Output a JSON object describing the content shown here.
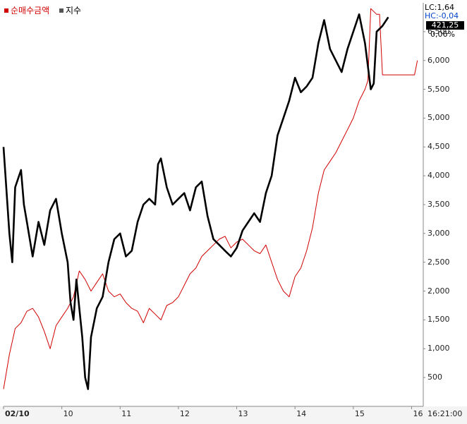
{
  "legend": {
    "amount_label": "순매수금액",
    "index_label": "지수"
  },
  "readouts": {
    "lc": "LC:1,64",
    "hc": "HC:-0,04",
    "current_value": "421,25",
    "change_pct": "0,06%",
    "time": "16:21:00"
  },
  "colors": {
    "amount_series": "#d10000",
    "index_series": "#000000",
    "background": "#ffffff",
    "axis_line": "#888888"
  },
  "chart_data": {
    "type": "line",
    "x_labels": [
      "02/10",
      "10",
      "11",
      "12",
      "13",
      "14",
      "15",
      "16"
    ],
    "y_ticks": [
      "500",
      "1,000",
      "1,500",
      "2,000",
      "2,500",
      "3,000",
      "3,500",
      "4,000",
      "4,500",
      "5,000",
      "5,500",
      "6,000",
      "6,500"
    ],
    "ylim": [
      0,
      7000
    ],
    "grid": false,
    "legend_position": "top-left",
    "series": [
      {
        "name": "순매수금액",
        "points": [
          [
            0.0,
            300
          ],
          [
            0.1,
            900
          ],
          [
            0.2,
            1350
          ],
          [
            0.3,
            1450
          ],
          [
            0.4,
            1650
          ],
          [
            0.5,
            1700
          ],
          [
            0.6,
            1550
          ],
          [
            0.7,
            1300
          ],
          [
            0.8,
            1000
          ],
          [
            0.9,
            1400
          ],
          [
            1.0,
            1550
          ],
          [
            1.1,
            1700
          ],
          [
            1.2,
            1900
          ],
          [
            1.3,
            2350
          ],
          [
            1.4,
            2200
          ],
          [
            1.5,
            2000
          ],
          [
            1.6,
            2150
          ],
          [
            1.7,
            2300
          ],
          [
            1.8,
            2000
          ],
          [
            1.9,
            1900
          ],
          [
            2.0,
            1950
          ],
          [
            2.1,
            1800
          ],
          [
            2.2,
            1700
          ],
          [
            2.3,
            1650
          ],
          [
            2.4,
            1450
          ],
          [
            2.5,
            1700
          ],
          [
            2.6,
            1600
          ],
          [
            2.7,
            1500
          ],
          [
            2.8,
            1750
          ],
          [
            2.9,
            1800
          ],
          [
            3.0,
            1900
          ],
          [
            3.1,
            2100
          ],
          [
            3.2,
            2300
          ],
          [
            3.3,
            2400
          ],
          [
            3.4,
            2600
          ],
          [
            3.5,
            2700
          ],
          [
            3.6,
            2800
          ],
          [
            3.7,
            2900
          ],
          [
            3.8,
            2950
          ],
          [
            3.9,
            2750
          ],
          [
            4.0,
            2850
          ],
          [
            4.1,
            2900
          ],
          [
            4.2,
            2800
          ],
          [
            4.3,
            2700
          ],
          [
            4.4,
            2650
          ],
          [
            4.5,
            2800
          ],
          [
            4.6,
            2500
          ],
          [
            4.7,
            2200
          ],
          [
            4.8,
            2000
          ],
          [
            4.9,
            1900
          ],
          [
            5.0,
            2250
          ],
          [
            5.1,
            2400
          ],
          [
            5.2,
            2700
          ],
          [
            5.3,
            3100
          ],
          [
            5.4,
            3700
          ],
          [
            5.5,
            4100
          ],
          [
            5.6,
            4250
          ],
          [
            5.7,
            4400
          ],
          [
            5.8,
            4600
          ],
          [
            5.9,
            4800
          ],
          [
            6.0,
            5000
          ],
          [
            6.1,
            5300
          ],
          [
            6.2,
            5500
          ],
          [
            6.25,
            5650
          ],
          [
            6.3,
            6900
          ],
          [
            6.4,
            6800
          ],
          [
            6.45,
            6800
          ],
          [
            6.5,
            5750
          ],
          [
            6.7,
            5750
          ],
          [
            6.9,
            5750
          ],
          [
            7.05,
            5750
          ],
          [
            7.1,
            6000
          ]
        ]
      },
      {
        "name": "지수",
        "points": [
          [
            0.0,
            4500
          ],
          [
            0.1,
            3000
          ],
          [
            0.15,
            2500
          ],
          [
            0.2,
            3800
          ],
          [
            0.3,
            4100
          ],
          [
            0.35,
            3500
          ],
          [
            0.4,
            3200
          ],
          [
            0.5,
            2600
          ],
          [
            0.6,
            3200
          ],
          [
            0.7,
            2800
          ],
          [
            0.8,
            3400
          ],
          [
            0.9,
            3600
          ],
          [
            1.0,
            3000
          ],
          [
            1.1,
            2500
          ],
          [
            1.15,
            1800
          ],
          [
            1.2,
            1500
          ],
          [
            1.25,
            2200
          ],
          [
            1.35,
            1200
          ],
          [
            1.4,
            500
          ],
          [
            1.45,
            300
          ],
          [
            1.5,
            1200
          ],
          [
            1.6,
            1700
          ],
          [
            1.7,
            1900
          ],
          [
            1.8,
            2500
          ],
          [
            1.9,
            2900
          ],
          [
            2.0,
            3000
          ],
          [
            2.1,
            2600
          ],
          [
            2.2,
            2700
          ],
          [
            2.3,
            3200
          ],
          [
            2.4,
            3500
          ],
          [
            2.5,
            3600
          ],
          [
            2.6,
            3500
          ],
          [
            2.65,
            4200
          ],
          [
            2.7,
            4300
          ],
          [
            2.8,
            3800
          ],
          [
            2.9,
            3500
          ],
          [
            3.0,
            3600
          ],
          [
            3.1,
            3700
          ],
          [
            3.2,
            3400
          ],
          [
            3.3,
            3800
          ],
          [
            3.4,
            3900
          ],
          [
            3.5,
            3300
          ],
          [
            3.6,
            2900
          ],
          [
            3.7,
            2800
          ],
          [
            3.8,
            2700
          ],
          [
            3.9,
            2600
          ],
          [
            4.0,
            2750
          ],
          [
            4.1,
            3050
          ],
          [
            4.2,
            3200
          ],
          [
            4.3,
            3350
          ],
          [
            4.4,
            3200
          ],
          [
            4.5,
            3700
          ],
          [
            4.6,
            4000
          ],
          [
            4.7,
            4700
          ],
          [
            4.8,
            5000
          ],
          [
            4.9,
            5300
          ],
          [
            5.0,
            5700
          ],
          [
            5.1,
            5450
          ],
          [
            5.2,
            5550
          ],
          [
            5.3,
            5700
          ],
          [
            5.4,
            6300
          ],
          [
            5.5,
            6700
          ],
          [
            5.6,
            6200
          ],
          [
            5.7,
            6000
          ],
          [
            5.8,
            5800
          ],
          [
            5.9,
            6200
          ],
          [
            6.0,
            6500
          ],
          [
            6.1,
            6800
          ],
          [
            6.2,
            6300
          ],
          [
            6.25,
            5900
          ],
          [
            6.3,
            5500
          ],
          [
            6.35,
            5600
          ],
          [
            6.4,
            6500
          ],
          [
            6.5,
            6600
          ],
          [
            6.6,
            6750
          ]
        ]
      }
    ]
  }
}
